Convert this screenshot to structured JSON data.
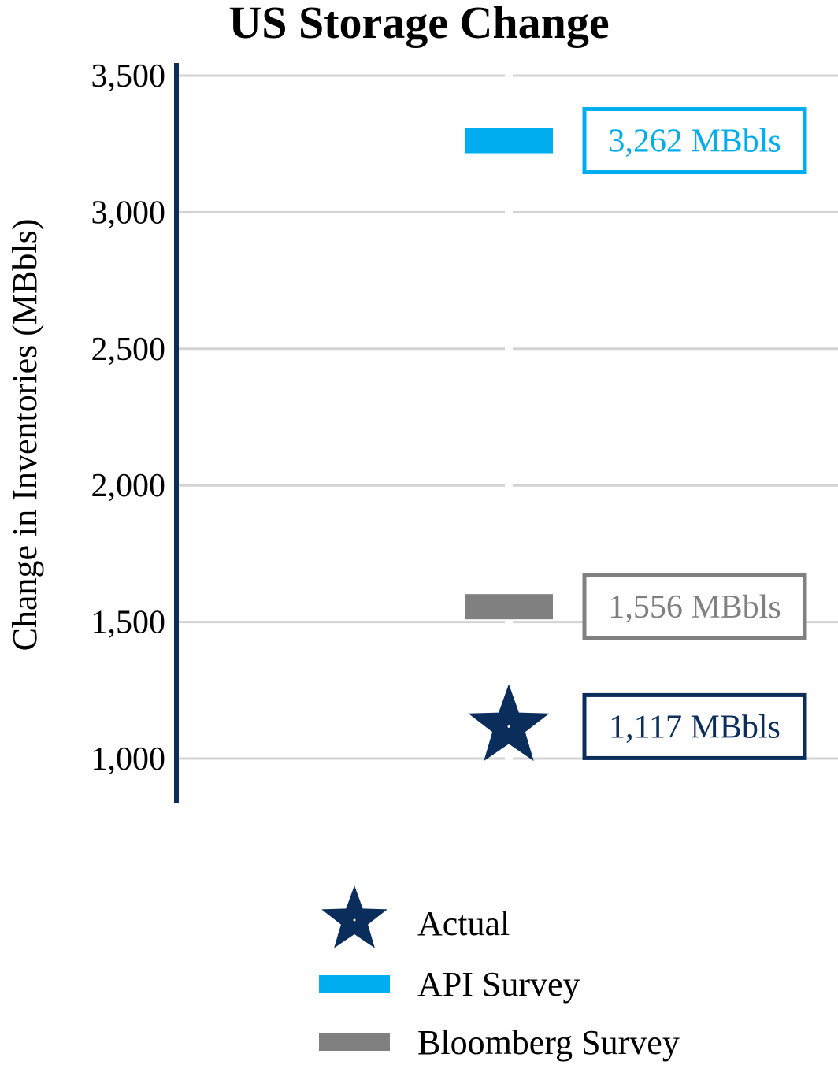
{
  "chart_data": {
    "type": "scatter",
    "title": "US Storage Change",
    "xlabel": "",
    "ylabel": "Change in Inventories (MBbls)",
    "ylim": [
      840,
      3540
    ],
    "yticks": [
      1000,
      1500,
      2000,
      2500,
      3000,
      3500
    ],
    "ytick_labels": [
      "1,000",
      "1,500",
      "2,000",
      "2,500",
      "3,000",
      "3,500"
    ],
    "grid": true,
    "legend_position": "bottom",
    "series": [
      {
        "name": "Actual",
        "marker": "star",
        "color": "#0b2d5b",
        "value": 1117,
        "label": "1,117 MBbls"
      },
      {
        "name": "API Survey",
        "marker": "dash",
        "color": "#00aeef",
        "value": 3262,
        "label": "3,262 MBbls"
      },
      {
        "name": "Bloomberg Survey",
        "marker": "dash",
        "color": "#808080",
        "value": 1556,
        "label": "1,556 MBbls"
      }
    ]
  },
  "colors": {
    "axis": "#0b2d5b",
    "grid": "#d3d3d3",
    "text": "#000000"
  }
}
